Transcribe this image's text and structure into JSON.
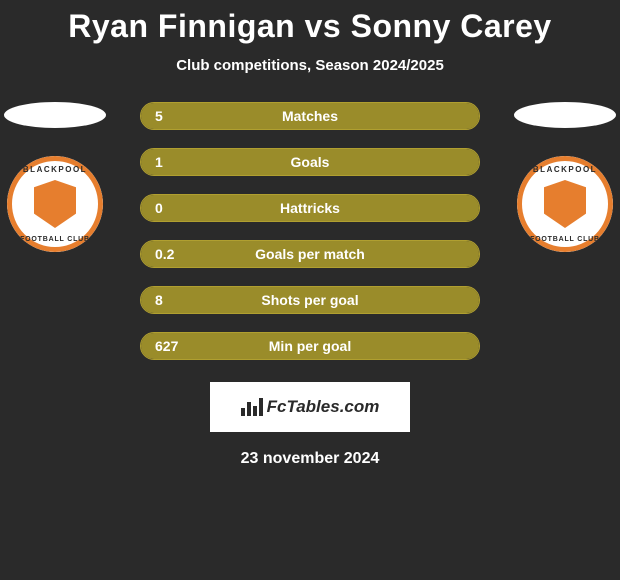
{
  "title": "Ryan Finnigan vs Sonny Carey",
  "subtitle": "Club competitions, Season 2024/2025",
  "date": "23 november 2024",
  "footer_brand": "FcTables.com",
  "colors": {
    "background": "#2a2a2a",
    "bar_fill": "#9a8c2a",
    "bar_border": "#b09f30",
    "text": "#ffffff",
    "footer_bg": "#ffffff",
    "badge_accent": "#e67e2e"
  },
  "left_club": {
    "name": "BLACKPOOL",
    "sub": "FOOTBALL CLUB"
  },
  "right_club": {
    "name": "BLACKPOOL",
    "sub": "FOOTBALL CLUB"
  },
  "stats": [
    {
      "label": "Matches",
      "left_value": "5",
      "right_value": "",
      "left_fill_pct": 100,
      "right_fill_pct": 0
    },
    {
      "label": "Goals",
      "left_value": "1",
      "right_value": "",
      "left_fill_pct": 100,
      "right_fill_pct": 0
    },
    {
      "label": "Hattricks",
      "left_value": "0",
      "right_value": "",
      "left_fill_pct": 100,
      "right_fill_pct": 0
    },
    {
      "label": "Goals per match",
      "left_value": "0.2",
      "right_value": "",
      "left_fill_pct": 100,
      "right_fill_pct": 0
    },
    {
      "label": "Shots per goal",
      "left_value": "8",
      "right_value": "",
      "left_fill_pct": 100,
      "right_fill_pct": 0
    },
    {
      "label": "Min per goal",
      "left_value": "627",
      "right_value": "",
      "left_fill_pct": 100,
      "right_fill_pct": 0
    }
  ],
  "typography": {
    "title_fontsize": 32,
    "subtitle_fontsize": 15,
    "stat_label_fontsize": 14,
    "date_fontsize": 16
  }
}
